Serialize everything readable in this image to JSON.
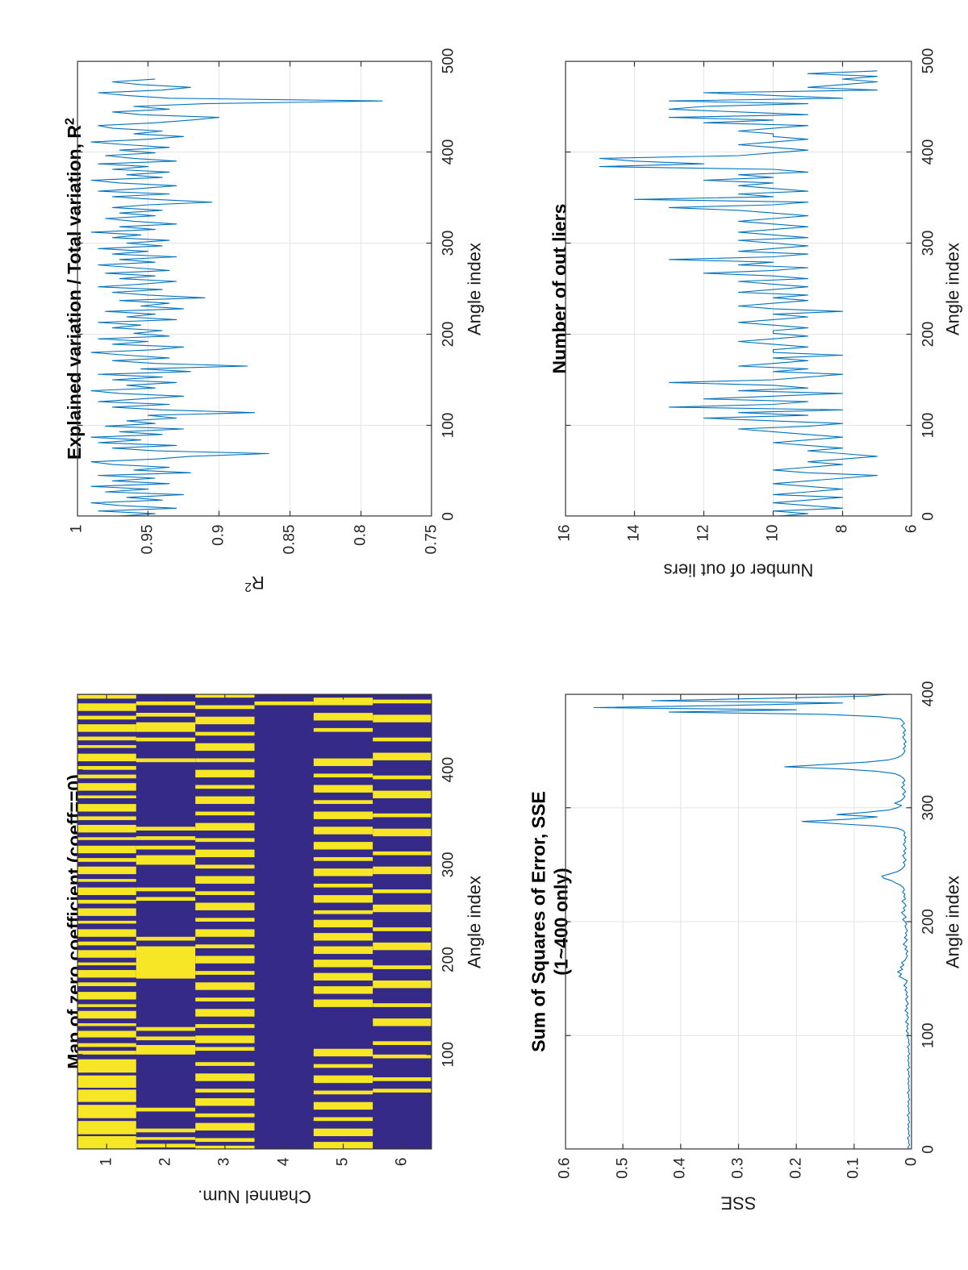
{
  "figure": {
    "background": "#ffffff",
    "line_color": "#0072BD",
    "axis_color": "#333333",
    "grid_color": "#e4e4e4",
    "map_blue": "#352a87",
    "map_yellow": "#f6e626"
  },
  "chart_data": [
    {
      "id": "zero-map",
      "type": "heatmap",
      "title": "Map of zero coefficient (coeff==0)",
      "xlabel": "Angle index",
      "ylabel": "Channel Num.",
      "x_range": [
        0,
        480
      ],
      "x_ticks": [
        100,
        200,
        300,
        400
      ],
      "y_ticks": [
        1,
        2,
        3,
        4,
        5,
        6
      ],
      "colors": {
        "nonzero": "#352a87",
        "zero": "#f6e626"
      },
      "channels": [
        {
          "num": 1,
          "yellow_segments": [
            [
              0,
              14
            ],
            [
              16,
              30
            ],
            [
              33,
              47
            ],
            [
              50,
              63
            ],
            [
              65,
              78
            ],
            [
              81,
              95
            ],
            [
              100,
              104
            ],
            [
              108,
              112
            ],
            [
              118,
              125
            ],
            [
              130,
              133
            ],
            [
              138,
              146
            ],
            [
              150,
              153
            ],
            [
              158,
              166
            ],
            [
              172,
              176
            ],
            [
              181,
              189
            ],
            [
              194,
              197
            ],
            [
              202,
              210
            ],
            [
              215,
              219
            ],
            [
              224,
              232
            ],
            [
              238,
              241
            ],
            [
              246,
              254
            ],
            [
              259,
              263
            ],
            [
              268,
              276
            ],
            [
              282,
              285
            ],
            [
              290,
              298
            ],
            [
              303,
              307
            ],
            [
              312,
              320
            ],
            [
              326,
              329
            ],
            [
              334,
              342
            ],
            [
              347,
              351
            ],
            [
              356,
              364
            ],
            [
              370,
              373
            ],
            [
              378,
              386
            ],
            [
              391,
              395
            ],
            [
              400,
              404
            ],
            [
              409,
              417
            ],
            [
              423,
              426
            ],
            [
              431,
              435
            ],
            [
              440,
              448
            ],
            [
              453,
              457
            ],
            [
              462,
              470
            ],
            [
              475,
              479
            ]
          ]
        },
        {
          "num": 2,
          "yellow_segments": [
            [
              2,
              6
            ],
            [
              10,
              13
            ],
            [
              18,
              22
            ],
            [
              40,
              44
            ],
            [
              100,
              110
            ],
            [
              115,
              119
            ],
            [
              125,
              129
            ],
            [
              180,
              214
            ],
            [
              220,
              224
            ],
            [
              262,
              266
            ],
            [
              272,
              276
            ],
            [
              300,
              310
            ],
            [
              316,
              320
            ],
            [
              326,
              330
            ],
            [
              336,
              340
            ],
            [
              408,
              412
            ],
            [
              430,
              434
            ],
            [
              440,
              450
            ],
            [
              456,
              460
            ],
            [
              468,
              472
            ]
          ]
        },
        {
          "num": 3,
          "yellow_segments": [
            [
              0,
              4
            ],
            [
              8,
              12
            ],
            [
              20,
              28
            ],
            [
              34,
              38
            ],
            [
              46,
              54
            ],
            [
              60,
              64
            ],
            [
              72,
              80
            ],
            [
              88,
              92
            ],
            [
              104,
              108
            ],
            [
              112,
              120
            ],
            [
              128,
              132
            ],
            [
              140,
              148
            ],
            [
              156,
              160
            ],
            [
              168,
              176
            ],
            [
              184,
              188
            ],
            [
              196,
              204
            ],
            [
              212,
              216
            ],
            [
              224,
              232
            ],
            [
              240,
              244
            ],
            [
              252,
              260
            ],
            [
              268,
              272
            ],
            [
              280,
              288
            ],
            [
              296,
              300
            ],
            [
              308,
              316
            ],
            [
              324,
              328
            ],
            [
              336,
              344
            ],
            [
              352,
              356
            ],
            [
              364,
              372
            ],
            [
              380,
              384
            ],
            [
              392,
              400
            ],
            [
              408,
              412
            ],
            [
              420,
              428
            ],
            [
              436,
              440
            ],
            [
              448,
              456
            ],
            [
              464,
              468
            ],
            [
              476,
              480
            ]
          ]
        },
        {
          "num": 4,
          "yellow_segments": [
            [
              468,
              472
            ]
          ]
        },
        {
          "num": 5,
          "yellow_segments": [
            [
              0,
              8
            ],
            [
              14,
              22
            ],
            [
              30,
              34
            ],
            [
              42,
              50
            ],
            [
              58,
              62
            ],
            [
              70,
              78
            ],
            [
              86,
              90
            ],
            [
              98,
              106
            ],
            [
              150,
              158
            ],
            [
              164,
              172
            ],
            [
              178,
              186
            ],
            [
              192,
              200
            ],
            [
              206,
              214
            ],
            [
              220,
              228
            ],
            [
              234,
              242
            ],
            [
              248,
              252
            ],
            [
              260,
              268
            ],
            [
              276,
              280
            ],
            [
              288,
              296
            ],
            [
              304,
              308
            ],
            [
              316,
              324
            ],
            [
              332,
              340
            ],
            [
              348,
              356
            ],
            [
              364,
              368
            ],
            [
              376,
              384
            ],
            [
              392,
              396
            ],
            [
              404,
              412
            ],
            [
              440,
              444
            ],
            [
              452,
              460
            ],
            [
              468,
              476
            ]
          ]
        },
        {
          "num": 6,
          "yellow_segments": [
            [
              60,
              64
            ],
            [
              72,
              76
            ],
            [
              96,
              100
            ],
            [
              110,
              114
            ],
            [
              130,
              138
            ],
            [
              150,
              154
            ],
            [
              170,
              178
            ],
            [
              190,
              194
            ],
            [
              210,
              218
            ],
            [
              230,
              234
            ],
            [
              250,
              258
            ],
            [
              270,
              274
            ],
            [
              290,
              298
            ],
            [
              310,
              314
            ],
            [
              330,
              338
            ],
            [
              350,
              354
            ],
            [
              370,
              378
            ],
            [
              390,
              394
            ],
            [
              410,
              418
            ],
            [
              430,
              434
            ],
            [
              450,
              458
            ],
            [
              470,
              474
            ]
          ]
        }
      ]
    },
    {
      "id": "r2",
      "type": "line",
      "title": "Explained variation / Total variation, R",
      "title_sup": "2",
      "xlabel": "Angle index",
      "ylabel": "R",
      "ylabel_sup": "2",
      "x_range": [
        0,
        500
      ],
      "y_range": [
        0.75,
        1
      ],
      "x_ticks": [
        0,
        100,
        200,
        300,
        400,
        500
      ],
      "y_ticks": [
        0.75,
        0.8,
        0.85,
        0.9,
        0.95,
        1
      ],
      "x_step": 3,
      "values": [
        0.975,
        0.945,
        0.985,
        0.93,
        0.97,
        0.99,
        0.94,
        0.965,
        0.925,
        0.98,
        0.95,
        0.99,
        0.935,
        0.975,
        0.945,
        0.985,
        0.92,
        0.96,
        0.935,
        0.975,
        0.99,
        0.945,
        0.92,
        0.865,
        0.945,
        0.975,
        0.93,
        0.985,
        0.955,
        0.99,
        0.94,
        0.97,
        0.925,
        0.98,
        0.945,
        0.965,
        0.93,
        0.95,
        0.875,
        0.94,
        0.975,
        0.935,
        0.985,
        0.955,
        0.925,
        0.97,
        0.99,
        0.945,
        0.965,
        0.93,
        0.975,
        0.94,
        0.985,
        0.92,
        0.955,
        0.88,
        0.945,
        0.975,
        0.935,
        0.965,
        0.99,
        0.945,
        0.925,
        0.975,
        0.95,
        0.985,
        0.935,
        0.96,
        0.94,
        0.975,
        0.955,
        0.985,
        0.93,
        0.965,
        0.945,
        0.98,
        0.925,
        0.955,
        0.935,
        0.97,
        0.91,
        0.95,
        0.975,
        0.94,
        0.985,
        0.955,
        0.93,
        0.97,
        0.945,
        0.98,
        0.935,
        0.96,
        0.985,
        0.945,
        0.97,
        0.93,
        0.975,
        0.95,
        0.985,
        0.94,
        0.965,
        0.935,
        0.975,
        0.955,
        0.99,
        0.945,
        0.97,
        0.93,
        0.96,
        0.98,
        0.945,
        0.97,
        0.94,
        0.975,
        0.95,
        0.905,
        0.945,
        0.975,
        0.935,
        0.985,
        0.955,
        0.93,
        0.97,
        0.99,
        0.94,
        0.965,
        0.935,
        0.975,
        0.95,
        0.985,
        0.93,
        0.96,
        0.98,
        0.945,
        0.97,
        0.935,
        0.965,
        0.99,
        0.95,
        0.925,
        0.96,
        0.94,
        0.975,
        0.985,
        0.945,
        0.92,
        0.9,
        0.955,
        0.975,
        0.935,
        0.96,
        0.91,
        0.785,
        0.935,
        0.965,
        0.985,
        0.94,
        0.92,
        0.955,
        0.975,
        0.945
      ]
    },
    {
      "id": "sse",
      "type": "line",
      "title": "Sum of Squares of Error, SSE",
      "title_line2": "(1~400 only)",
      "xlabel": "Angle index",
      "ylabel": "SSE",
      "x_range": [
        0,
        400
      ],
      "y_range": [
        0,
        0.6
      ],
      "x_ticks": [
        0,
        100,
        200,
        300,
        400
      ],
      "y_ticks": [
        0,
        0.1,
        0.2,
        0.3,
        0.4,
        0.5,
        0.6
      ],
      "x_step": 2,
      "values": [
        0.005,
        0.007,
        0.004,
        0.006,
        0.005,
        0.008,
        0.004,
        0.006,
        0.005,
        0.007,
        0.005,
        0.007,
        0.004,
        0.006,
        0.005,
        0.008,
        0.004,
        0.006,
        0.005,
        0.007,
        0.005,
        0.007,
        0.004,
        0.006,
        0.005,
        0.008,
        0.004,
        0.006,
        0.005,
        0.007,
        0.005,
        0.007,
        0.004,
        0.006,
        0.005,
        0.008,
        0.004,
        0.006,
        0.005,
        0.007,
        0.005,
        0.007,
        0.004,
        0.006,
        0.005,
        0.008,
        0.004,
        0.006,
        0.005,
        0.007,
        0.008,
        0.006,
        0.01,
        0.007,
        0.009,
        0.006,
        0.011,
        0.008,
        0.006,
        0.009,
        0.007,
        0.012,
        0.008,
        0.01,
        0.006,
        0.009,
        0.011,
        0.007,
        0.01,
        0.008,
        0.012,
        0.009,
        0.014,
        0.01,
        0.008,
        0.015,
        0.022,
        0.018,
        0.025,
        0.016,
        0.02,
        0.014,
        0.018,
        0.012,
        0.01,
        0.008,
        0.01,
        0.007,
        0.012,
        0.009,
        0.015,
        0.011,
        0.008,
        0.013,
        0.009,
        0.011,
        0.008,
        0.01,
        0.012,
        0.009,
        0.012,
        0.016,
        0.01,
        0.014,
        0.018,
        0.012,
        0.015,
        0.01,
        0.013,
        0.017,
        0.011,
        0.014,
        0.012,
        0.016,
        0.013,
        0.015,
        0.02,
        0.028,
        0.035,
        0.048,
        0.052,
        0.038,
        0.025,
        0.018,
        0.014,
        0.012,
        0.015,
        0.01,
        0.013,
        0.016,
        0.011,
        0.014,
        0.01,
        0.012,
        0.015,
        0.011,
        0.013,
        0.01,
        0.014,
        0.012,
        0.015,
        0.025,
        0.06,
        0.13,
        0.19,
        0.11,
        0.06,
        0.13,
        0.08,
        0.04,
        0.025,
        0.018,
        0.03,
        0.02,
        0.015,
        0.012,
        0.016,
        0.011,
        0.014,
        0.018,
        0.013,
        0.016,
        0.012,
        0.015,
        0.02,
        0.03,
        0.06,
        0.12,
        0.22,
        0.15,
        0.08,
        0.04,
        0.025,
        0.018,
        0.014,
        0.012,
        0.015,
        0.011,
        0.014,
        0.01,
        0.013,
        0.016,
        0.012,
        0.015,
        0.011,
        0.014,
        0.018,
        0.013,
        0.016,
        0.02,
        0.06,
        0.15,
        0.42,
        0.2,
        0.55,
        0.3,
        0.12,
        0.45,
        0.25,
        0.08,
        0.03
      ]
    },
    {
      "id": "outliers",
      "type": "line",
      "title": "Number of out liers",
      "xlabel": "Angle index",
      "ylabel": "Number of out liers",
      "x_range": [
        0,
        500
      ],
      "y_range": [
        6,
        16
      ],
      "x_ticks": [
        0,
        100,
        200,
        300,
        400,
        500
      ],
      "y_ticks": [
        6,
        8,
        10,
        12,
        14,
        16
      ],
      "x_step": 3,
      "values": [
        10,
        9,
        10,
        8,
        9,
        10,
        9,
        8,
        10,
        9,
        8,
        9,
        10,
        9,
        8,
        7,
        9,
        10,
        9,
        8,
        9,
        8,
        7,
        8,
        9,
        8,
        9,
        10,
        9,
        8,
        9,
        10,
        11,
        9,
        8,
        10,
        12,
        9,
        11,
        8,
        13,
        10,
        9,
        12,
        10,
        8,
        11,
        9,
        10,
        13,
        10,
        9,
        8,
        10,
        9,
        11,
        10,
        9,
        10,
        8,
        10,
        10,
        9,
        10,
        11,
        10,
        9,
        10,
        10,
        9,
        10,
        11,
        10,
        9,
        10,
        8,
        10,
        11,
        10,
        9,
        10,
        9,
        11,
        10,
        9,
        10,
        11,
        9,
        10,
        12,
        10,
        9,
        11,
        10,
        13,
        10,
        9,
        11,
        10,
        9,
        10,
        11,
        9,
        10,
        11,
        10,
        9,
        10,
        11,
        10,
        9,
        10,
        11,
        13,
        10,
        9,
        14,
        10,
        11,
        9,
        10,
        11,
        10,
        12,
        10,
        11,
        9,
        10,
        15,
        12,
        14,
        15,
        11,
        10,
        9,
        10,
        11,
        10,
        9,
        10,
        10,
        11,
        10,
        9,
        12,
        10,
        13,
        9,
        11,
        13,
        12,
        9,
        13,
        8,
        10,
        12,
        7,
        9,
        8,
        7,
        8,
        7,
        9,
        7
      ]
    }
  ]
}
